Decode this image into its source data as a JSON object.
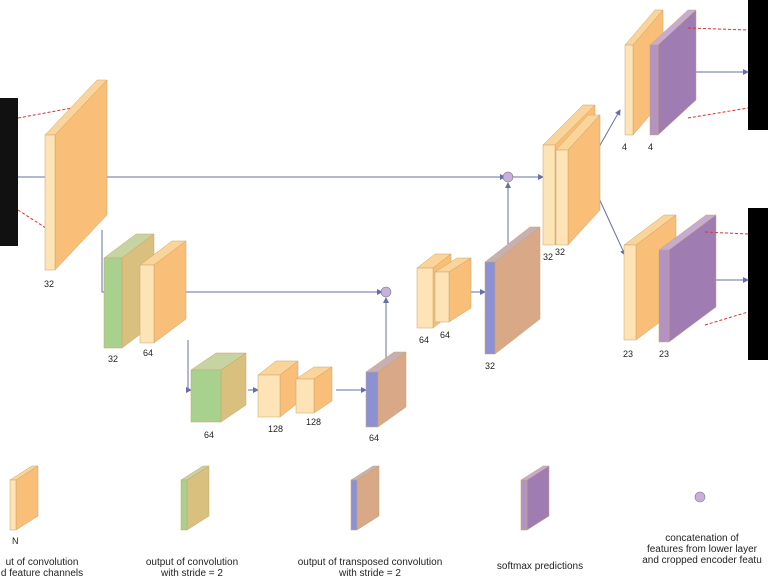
{
  "block_labels": [
    "32",
    "32",
    "64",
    "64",
    "128",
    "128",
    "64",
    "64",
    "64",
    "32",
    "32",
    "32",
    "4",
    "4",
    "23",
    "23"
  ],
  "legend": {
    "n_label": "N",
    "items": [
      {
        "lines": [
          "ut of convolution",
          "d feature channels"
        ]
      },
      {
        "lines": [
          "output of convolution",
          "with stride = 2"
        ]
      },
      {
        "lines": [
          "output of transposed convolution",
          "with stride = 2"
        ]
      },
      {
        "lines": [
          "softmax predictions"
        ]
      },
      {
        "lines": [
          "concatenation of",
          "features from lower layer",
          "and cropped encoder featu"
        ]
      }
    ]
  }
}
